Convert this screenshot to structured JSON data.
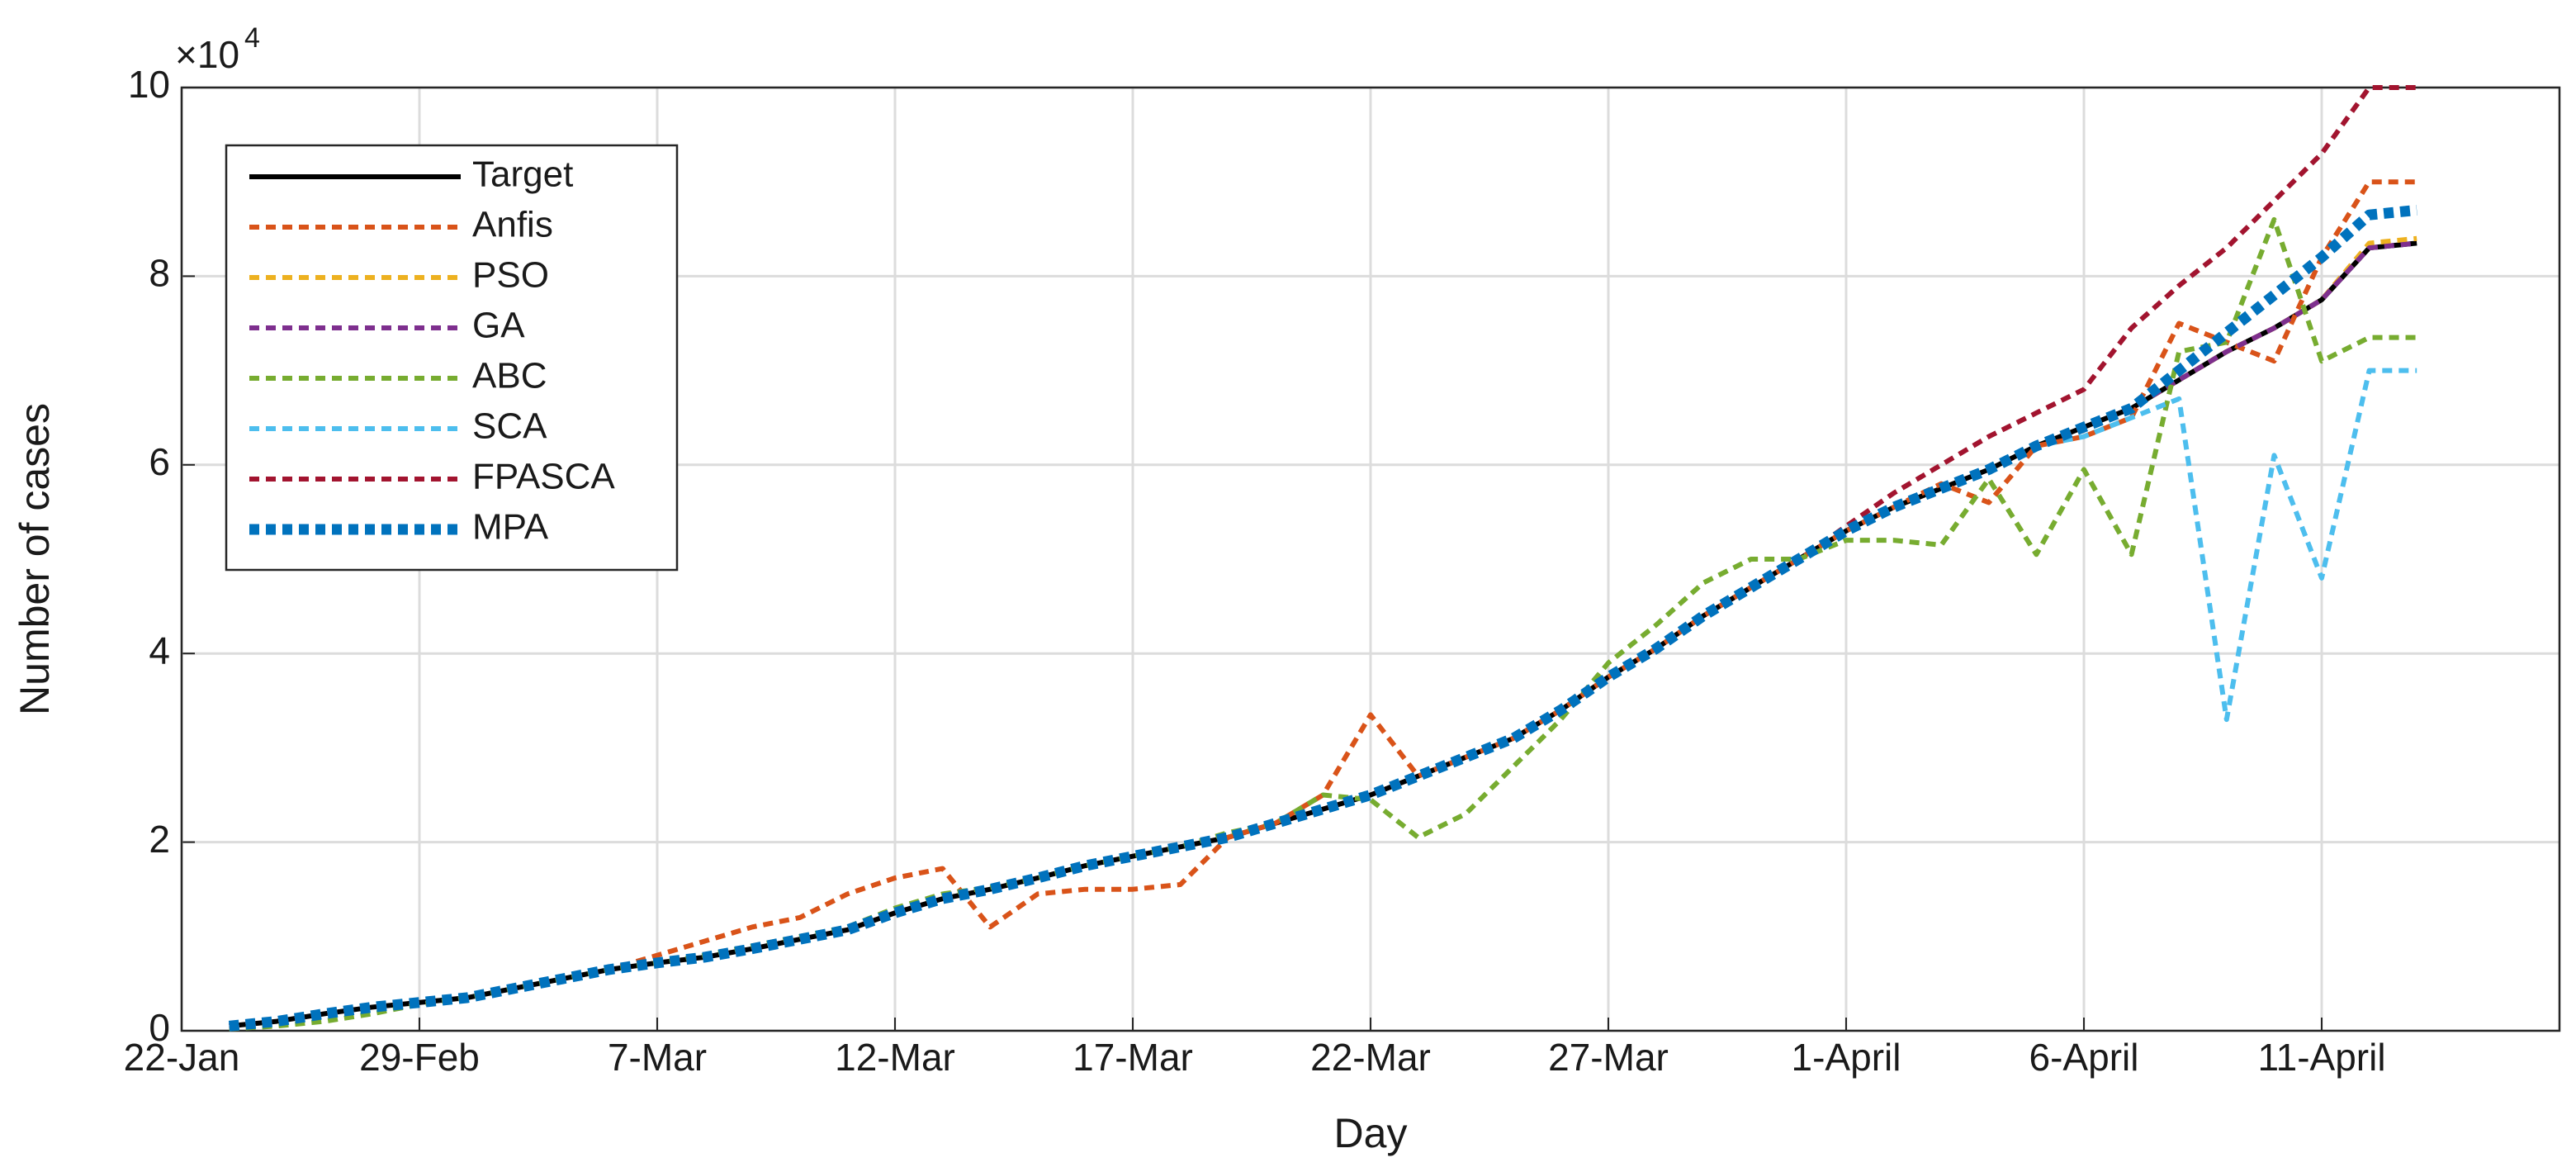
{
  "chart_data": {
    "type": "line",
    "x_label": "Day",
    "y_label": "Number of cases",
    "y_scale_label": "×10",
    "y_scale_exponent": "4",
    "x": [
      1,
      2,
      3,
      4,
      5,
      6,
      7,
      8,
      9,
      10,
      11,
      12,
      13,
      14,
      15,
      16,
      17,
      18,
      19,
      20,
      21,
      22,
      23,
      24,
      25,
      26,
      27,
      28,
      29,
      30,
      31,
      32,
      33,
      34,
      35,
      36,
      37,
      38,
      39,
      40,
      41,
      42,
      43,
      44,
      45,
      46,
      47
    ],
    "xlim": [
      0,
      50
    ],
    "xticks": [
      {
        "value": 0,
        "label": "22-Jan"
      },
      {
        "value": 5,
        "label": "29-Feb"
      },
      {
        "value": 10,
        "label": "7-Mar"
      },
      {
        "value": 15,
        "label": "12-Mar"
      },
      {
        "value": 20,
        "label": "17-Mar"
      },
      {
        "value": 25,
        "label": "22-Mar"
      },
      {
        "value": 30,
        "label": "27-Mar"
      },
      {
        "value": 35,
        "label": "1-April"
      },
      {
        "value": 40,
        "label": "6-April"
      },
      {
        "value": 45,
        "label": "11-April"
      }
    ],
    "ylim": [
      0,
      10
    ],
    "yticks": [
      0,
      2,
      4,
      6,
      8,
      10
    ],
    "grid": true,
    "legend": "upper left",
    "series": [
      {
        "name": "Target",
        "color": "#000000",
        "style": "solid",
        "values": [
          0.05,
          0.1,
          0.18,
          0.25,
          0.3,
          0.35,
          0.45,
          0.55,
          0.65,
          0.72,
          0.78,
          0.87,
          0.97,
          1.07,
          1.25,
          1.4,
          1.5,
          1.62,
          1.75,
          1.85,
          1.95,
          2.05,
          2.2,
          2.35,
          2.5,
          2.7,
          2.9,
          3.1,
          3.4,
          3.75,
          4.05,
          4.4,
          4.7,
          5.0,
          5.3,
          5.55,
          5.75,
          5.95,
          6.2,
          6.4,
          6.6,
          6.9,
          7.2,
          7.45,
          7.75,
          8.3,
          8.35
        ]
      },
      {
        "name": "Anfis",
        "color": "#d95319",
        "style": "dashed",
        "values": [
          0.05,
          0.1,
          0.18,
          0.25,
          0.3,
          0.35,
          0.45,
          0.55,
          0.65,
          0.8,
          0.95,
          1.1,
          1.2,
          1.45,
          1.62,
          1.72,
          1.1,
          1.45,
          1.5,
          1.5,
          1.55,
          2.05,
          2.2,
          2.5,
          3.35,
          2.7,
          2.9,
          3.1,
          3.4,
          3.75,
          4.05,
          4.4,
          4.7,
          5.0,
          5.3,
          5.55,
          5.8,
          5.6,
          6.2,
          6.3,
          6.5,
          7.5,
          7.3,
          7.1,
          8.2,
          9.0,
          9.0
        ]
      },
      {
        "name": "PSO",
        "color": "#edb120",
        "style": "dashed",
        "values": [
          0.05,
          0.1,
          0.18,
          0.25,
          0.3,
          0.35,
          0.45,
          0.55,
          0.65,
          0.72,
          0.78,
          0.87,
          0.97,
          1.07,
          1.25,
          1.4,
          1.5,
          1.62,
          1.75,
          1.85,
          1.95,
          2.05,
          2.2,
          2.35,
          2.5,
          2.7,
          2.9,
          3.1,
          3.4,
          3.75,
          4.05,
          4.4,
          4.7,
          5.0,
          5.3,
          5.55,
          5.75,
          5.95,
          6.2,
          6.4,
          6.6,
          6.9,
          7.2,
          7.45,
          7.75,
          8.35,
          8.4
        ]
      },
      {
        "name": "GA",
        "color": "#7e2f8e",
        "style": "dashed",
        "values": [
          0.05,
          0.1,
          0.18,
          0.25,
          0.3,
          0.35,
          0.45,
          0.55,
          0.65,
          0.72,
          0.78,
          0.87,
          0.97,
          1.07,
          1.25,
          1.4,
          1.5,
          1.62,
          1.75,
          1.85,
          1.95,
          2.05,
          2.2,
          2.35,
          2.5,
          2.7,
          2.9,
          3.1,
          3.4,
          3.75,
          4.05,
          4.4,
          4.7,
          5.0,
          5.3,
          5.55,
          5.75,
          5.95,
          6.2,
          6.4,
          6.6,
          6.9,
          7.2,
          7.45,
          7.75,
          8.3,
          8.35
        ]
      },
      {
        "name": "ABC",
        "color": "#77ac30",
        "style": "dashed",
        "values": [
          0.02,
          0.05,
          0.1,
          0.18,
          0.28,
          0.35,
          0.45,
          0.55,
          0.65,
          0.72,
          0.8,
          0.9,
          1.0,
          1.1,
          1.3,
          1.45,
          1.52,
          1.62,
          1.75,
          1.85,
          1.95,
          2.1,
          2.2,
          2.5,
          2.45,
          2.05,
          2.3,
          2.8,
          3.3,
          3.9,
          4.3,
          4.75,
          5.0,
          5.0,
          5.2,
          5.2,
          5.15,
          5.85,
          5.05,
          5.95,
          5.05,
          7.2,
          7.3,
          8.6,
          7.1,
          7.35,
          7.35
        ]
      },
      {
        "name": "SCA",
        "color": "#4dbeee",
        "style": "dashed",
        "values": [
          0.05,
          0.1,
          0.18,
          0.25,
          0.3,
          0.35,
          0.45,
          0.55,
          0.65,
          0.72,
          0.78,
          0.87,
          0.97,
          1.07,
          1.25,
          1.4,
          1.5,
          1.62,
          1.75,
          1.85,
          1.95,
          2.05,
          2.2,
          2.35,
          2.5,
          2.7,
          2.9,
          3.1,
          3.4,
          3.75,
          4.05,
          4.4,
          4.7,
          5.0,
          5.3,
          5.55,
          5.75,
          5.95,
          6.2,
          6.3,
          6.5,
          6.7,
          3.3,
          6.1,
          4.8,
          7.0,
          7.0
        ]
      },
      {
        "name": "FPASCA",
        "color": "#a2142f",
        "style": "dashed",
        "values": [
          0.05,
          0.1,
          0.18,
          0.25,
          0.3,
          0.35,
          0.45,
          0.55,
          0.65,
          0.72,
          0.78,
          0.87,
          0.97,
          1.07,
          1.25,
          1.4,
          1.5,
          1.62,
          1.75,
          1.85,
          1.95,
          2.05,
          2.2,
          2.35,
          2.5,
          2.7,
          2.9,
          3.1,
          3.4,
          3.75,
          4.05,
          4.4,
          4.7,
          5.0,
          5.35,
          5.7,
          6.0,
          6.3,
          6.55,
          6.8,
          7.45,
          7.9,
          8.3,
          8.8,
          9.3,
          10.0,
          10.0
        ]
      },
      {
        "name": "MPA",
        "color": "#0072bd",
        "style": "dotted",
        "values": [
          0.05,
          0.1,
          0.18,
          0.25,
          0.3,
          0.35,
          0.45,
          0.55,
          0.65,
          0.72,
          0.78,
          0.87,
          0.97,
          1.07,
          1.25,
          1.4,
          1.5,
          1.62,
          1.75,
          1.85,
          1.95,
          2.05,
          2.2,
          2.35,
          2.5,
          2.7,
          2.9,
          3.1,
          3.4,
          3.75,
          4.05,
          4.4,
          4.7,
          5.0,
          5.3,
          5.55,
          5.75,
          5.95,
          6.2,
          6.4,
          6.6,
          7.0,
          7.4,
          7.8,
          8.2,
          8.65,
          8.7
        ]
      }
    ]
  }
}
